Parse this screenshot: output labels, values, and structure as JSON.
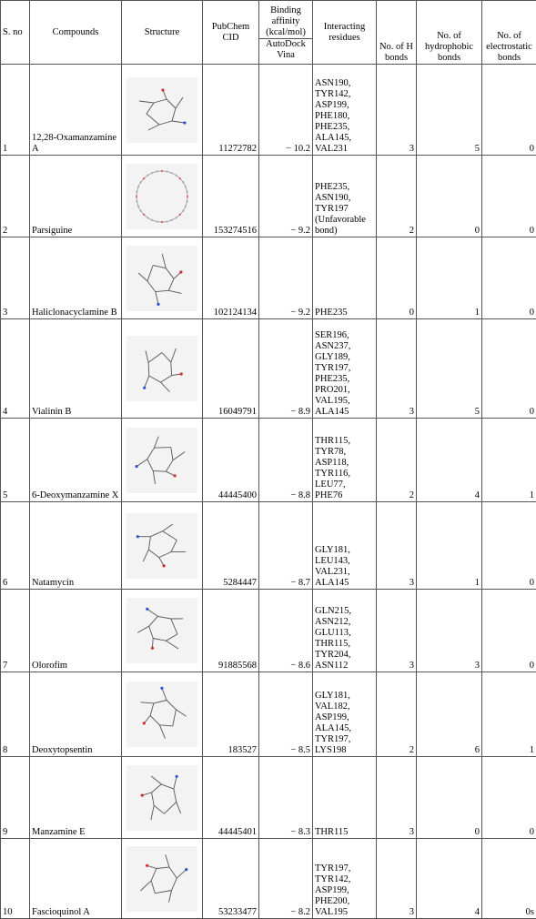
{
  "header": {
    "sno": "S. no",
    "compounds": "Compounds",
    "structure": "Structure",
    "pubchem": "PubChem CID",
    "binding": "Binding affinity (kcal/mol)",
    "binding_sub": "AutoDock Vina",
    "residues": "Interacting residues",
    "hbonds": "No. of H bonds",
    "hydrophobic": "No. of hydrophobic bonds",
    "electrostatic": "No. of electrostatic bonds"
  },
  "rows": [
    {
      "sno": "1",
      "compound": "12,28-Oxamanzamine A",
      "cid": "11272782",
      "affinity": "− 10.2",
      "residues": "ASN190, TYR142, ASP199, PHE180, PHE235, ALA145, VAL231",
      "hb": "3",
      "hp": "5",
      "el": "0",
      "icon": "molecule-structure-icon"
    },
    {
      "sno": "2",
      "compound": "Parsiguine",
      "cid": "153274516",
      "affinity": "− 9.2",
      "residues": "PHE235, ASN190, TYR197 (Unfavorable bond)",
      "hb": "2",
      "hp": "0",
      "el": "0",
      "icon": "macrocycle-structure-icon"
    },
    {
      "sno": "3",
      "compound": "Haliclonacyclamine B",
      "cid": "102124134",
      "affinity": "− 9.2",
      "residues": "PHE235",
      "hb": "0",
      "hp": "1",
      "el": "0",
      "icon": "molecule-structure-icon"
    },
    {
      "sno": "4",
      "compound": "Vialinin B",
      "cid": "16049791",
      "affinity": "− 8.9",
      "residues": "SER196, ASN237, GLY189, TYR197, PHE235, PRO201, VAL195, ALA145",
      "hb": "3",
      "hp": "5",
      "el": "0",
      "icon": "molecule-structure-icon"
    },
    {
      "sno": "5",
      "compound": "6-Deoxymanzamine X",
      "cid": "44445400",
      "affinity": "− 8.8",
      "residues": "THR115, TYR78, ASP118, TYR116, LEU77, PHE76",
      "hb": "2",
      "hp": "4",
      "el": "1",
      "icon": "molecule-structure-icon"
    },
    {
      "sno": "6",
      "compound": "Natamycin",
      "cid": "5284447",
      "affinity": "− 8.7",
      "residues": "GLY181, LEU143, VAL231, ALA145",
      "hb": "3",
      "hp": "1",
      "el": "0",
      "icon": "molecule-structure-icon"
    },
    {
      "sno": "7",
      "compound": "Olorofim",
      "cid": "91885568",
      "affinity": "− 8.6",
      "residues": "GLN215, ASN212, GLU113, THR115, TYR204, ASN112",
      "hb": "3",
      "hp": "3",
      "el": "0",
      "icon": "molecule-structure-icon"
    },
    {
      "sno": "8",
      "compound": "Deoxytopsentin",
      "cid": "183527",
      "affinity": "− 8.5",
      "residues": "GLY181, VAL182, ASP199, ALA145, TYR197, LYS198",
      "hb": "2",
      "hp": "6",
      "el": "1",
      "icon": "molecule-structure-icon"
    },
    {
      "sno": "9",
      "compound": "Manzamine E",
      "cid": "44445401",
      "affinity": "− 8.3",
      "residues": "THR115",
      "hb": "3",
      "hp": "0",
      "el": "0",
      "icon": "molecule-structure-icon"
    },
    {
      "sno": "10",
      "compound": "Fascioquinol A",
      "cid": "53233477",
      "affinity": "− 8.2",
      "residues": "TYR197, TYR142, ASP199, PHE200, VAL195",
      "hb": "3",
      "hp": "4",
      "el": "0s",
      "icon": "molecule-structure-icon"
    }
  ]
}
